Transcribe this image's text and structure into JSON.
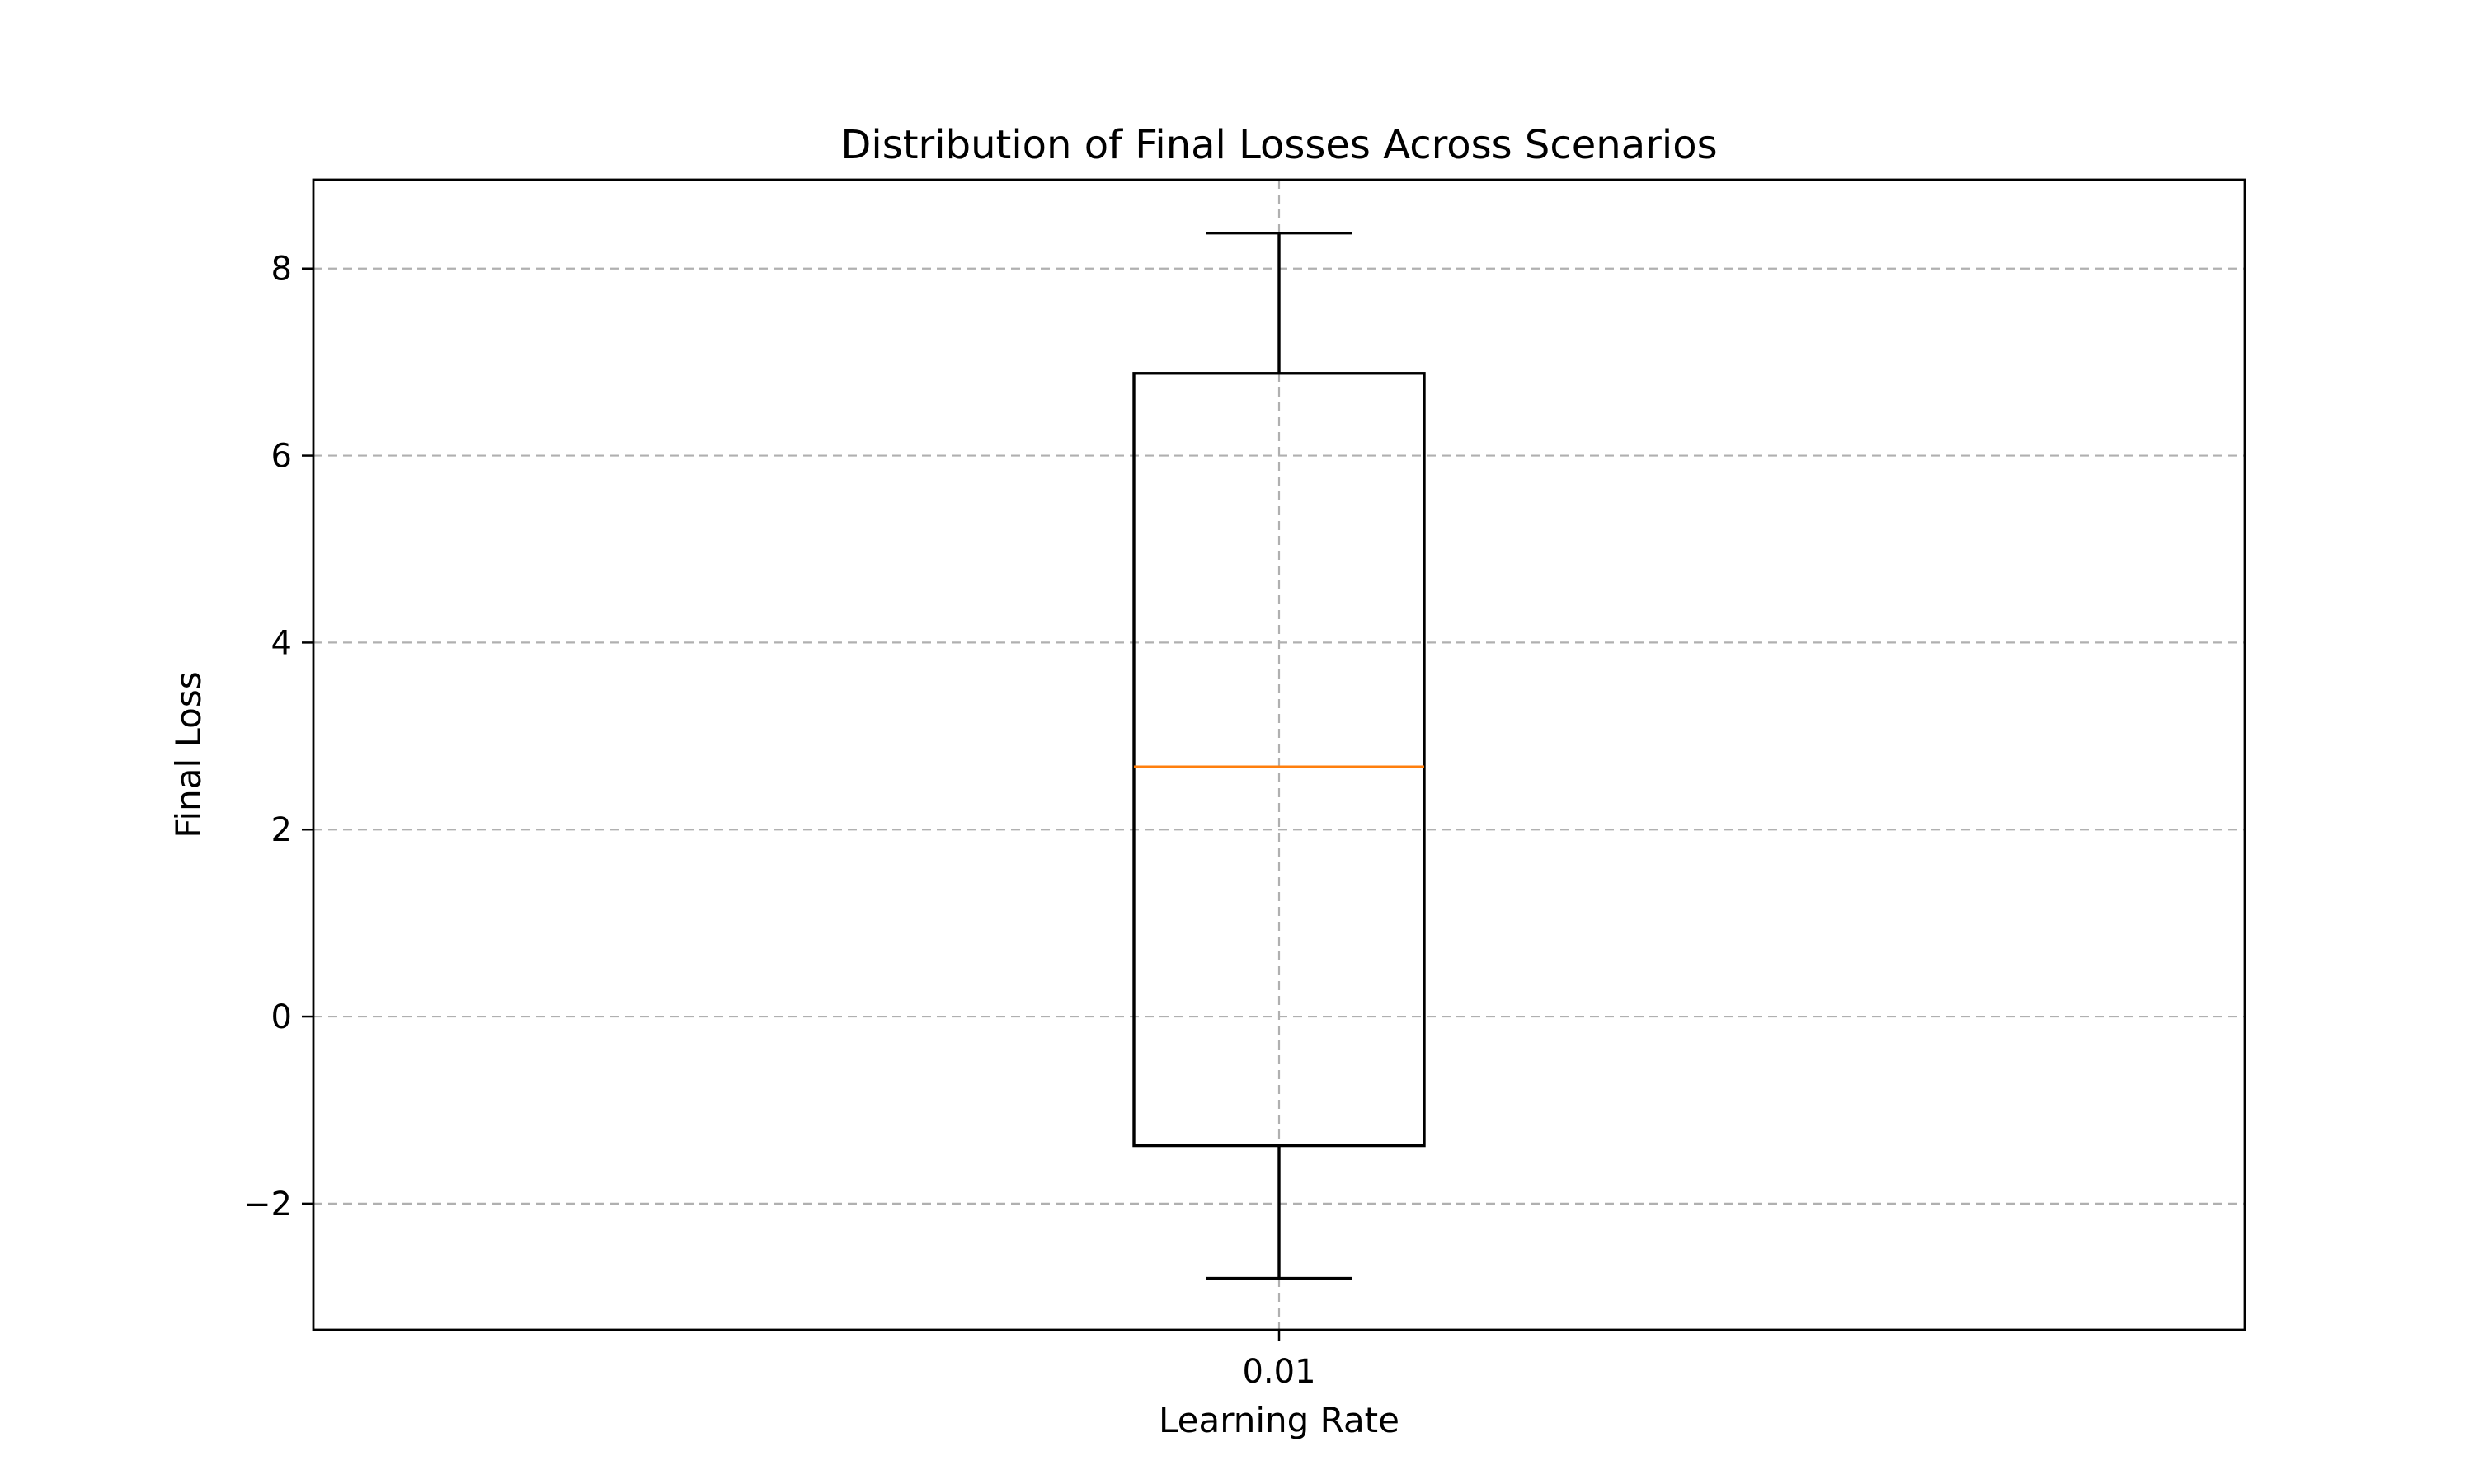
{
  "chart_data": {
    "type": "box",
    "title": "Distribution of Final Losses Across Scenarios",
    "xlabel": "Learning Rate",
    "ylabel": "Final Loss",
    "categories": [
      "0.01"
    ],
    "boxes": [
      {
        "category": "0.01",
        "whisker_low": -2.8,
        "q1": -1.38,
        "median": 2.67,
        "q3": 6.88,
        "whisker_high": 8.38
      }
    ],
    "ylim": [
      -3.35,
      8.95
    ],
    "yticks": [
      {
        "value": -2,
        "label": "−2"
      },
      {
        "value": 0,
        "label": "0"
      },
      {
        "value": 2,
        "label": "2"
      },
      {
        "value": 4,
        "label": "4"
      },
      {
        "value": 6,
        "label": "6"
      },
      {
        "value": 8,
        "label": "8"
      }
    ],
    "grid": true,
    "colors": {
      "median": "#ff7f0e",
      "box": "#000000",
      "grid": "#b0b0b0"
    }
  }
}
